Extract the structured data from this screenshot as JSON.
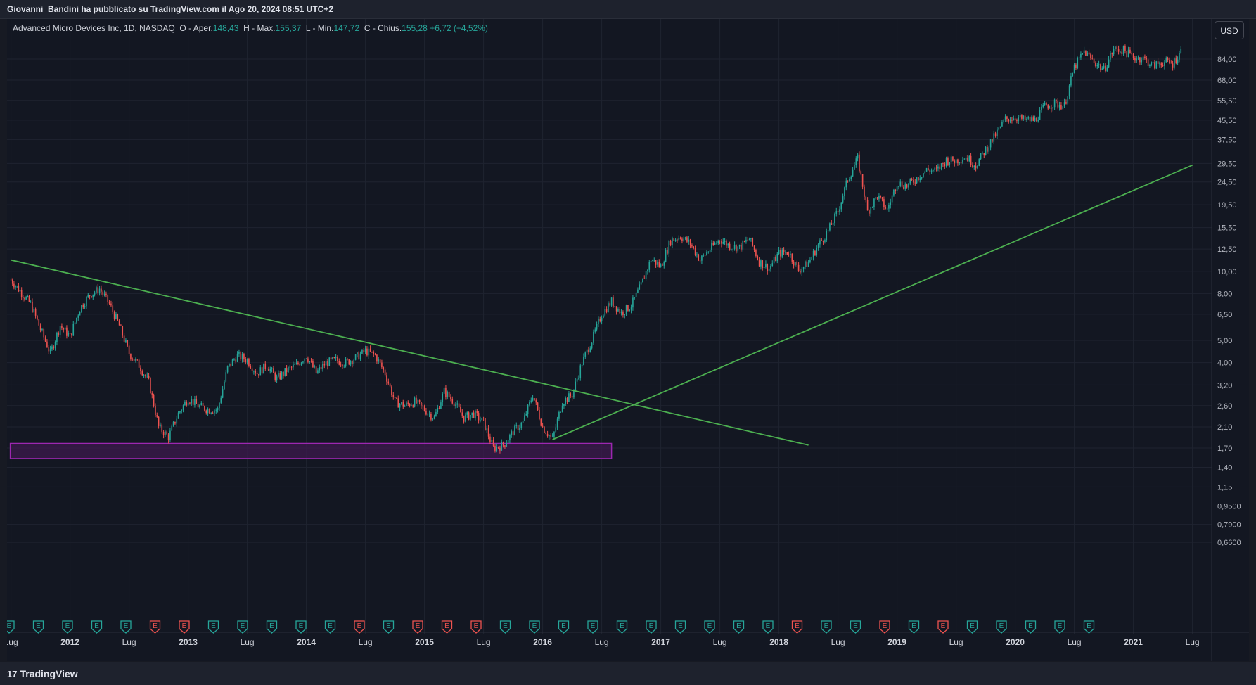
{
  "header": {
    "publisher_text": "Giovanni_Bandini ha pubblicato su TradingView.com il Ago 20, 2024 08:51 UTC+2"
  },
  "legend": {
    "symbol": "Advanced Micro Devices Inc, 1D, NASDAQ",
    "open_label": "O - Aper.",
    "open": "148,43",
    "high_label": "H - Max.",
    "high": "155,37",
    "low_label": "L - Min.",
    "low": "147,72",
    "close_label": "C - Chius.",
    "close": "155,28",
    "change": "+6,72 (+4,52%)"
  },
  "currency_button": "USD",
  "footer": {
    "brand": "TradingView",
    "logo_glyph": "17"
  },
  "colors": {
    "up": "#26a69a",
    "down": "#ef5350",
    "trendline": "#4caf50",
    "zone_border": "#9c27b0",
    "zone_fill": "#3e1a4d",
    "background": "#131722",
    "grid": "#1f2330"
  },
  "chart_data": {
    "type": "candlestick",
    "y_scale": "log",
    "ylim": [
      0.6,
      120
    ],
    "x_ticks": [
      "Lug",
      "2012",
      "Lug",
      "2013",
      "Lug",
      "2014",
      "Lug",
      "2015",
      "Lug",
      "2016",
      "Lug",
      "2017",
      "Lug",
      "2018",
      "Lug",
      "2019",
      "Lug",
      "2020",
      "Lug",
      "2021",
      "Lug"
    ],
    "y_ticks": [
      "84,00",
      "68,00",
      "55,50",
      "45,50",
      "37,50",
      "29,50",
      "24,50",
      "19,50",
      "15,50",
      "12,50",
      "10,00",
      "8,00",
      "6,50",
      "5,00",
      "4,00",
      "3,20",
      "2,60",
      "2,10",
      "1,70",
      "1,40",
      "1,15",
      "0,9500",
      "0,7900",
      "0,6600"
    ],
    "y_tick_values": [
      84,
      68,
      55.5,
      45.5,
      37.5,
      29.5,
      24.5,
      19.5,
      15.5,
      12.5,
      10,
      8,
      6.5,
      5,
      4,
      3.2,
      2.6,
      2.1,
      1.7,
      1.4,
      1.15,
      0.95,
      0.79,
      0.66
    ],
    "price_path": [
      [
        "2011-07",
        9.2
      ],
      [
        "2011-09",
        7.2
      ],
      [
        "2011-10",
        5.6
      ],
      [
        "2011-11",
        4.4
      ],
      [
        "2011-12",
        5.8
      ],
      [
        "2012-01",
        5.2
      ],
      [
        "2012-02",
        6.9
      ],
      [
        "2012-03",
        7.9
      ],
      [
        "2012-04",
        8.4
      ],
      [
        "2012-05",
        7.2
      ],
      [
        "2012-06",
        5.8
      ],
      [
        "2012-07",
        4.4
      ],
      [
        "2012-08",
        3.9
      ],
      [
        "2012-09",
        3.3
      ],
      [
        "2012-10",
        2.1
      ],
      [
        "2012-11",
        1.9
      ],
      [
        "2012-12",
        2.4
      ],
      [
        "2013-01",
        2.8
      ],
      [
        "2013-02",
        2.6
      ],
      [
        "2013-03",
        2.5
      ],
      [
        "2013-04",
        2.5
      ],
      [
        "2013-05",
        3.8
      ],
      [
        "2013-06",
        4.3
      ],
      [
        "2013-07",
        4.1
      ],
      [
        "2013-08",
        3.6
      ],
      [
        "2013-09",
        3.9
      ],
      [
        "2013-10",
        3.4
      ],
      [
        "2013-11",
        3.7
      ],
      [
        "2013-12",
        3.9
      ],
      [
        "2014-01",
        4.3
      ],
      [
        "2014-02",
        3.6
      ],
      [
        "2014-03",
        4.0
      ],
      [
        "2014-04",
        4.1
      ],
      [
        "2014-05",
        4.0
      ],
      [
        "2014-06",
        4.2
      ],
      [
        "2014-07",
        4.5
      ],
      [
        "2014-08",
        4.3
      ],
      [
        "2014-09",
        3.6
      ],
      [
        "2014-10",
        2.7
      ],
      [
        "2014-11",
        2.6
      ],
      [
        "2014-12",
        2.7
      ],
      [
        "2015-01",
        2.5
      ],
      [
        "2015-02",
        2.3
      ],
      [
        "2015-03",
        3.0
      ],
      [
        "2015-04",
        2.7
      ],
      [
        "2015-05",
        2.3
      ],
      [
        "2015-06",
        2.4
      ],
      [
        "2015-07",
        2.2
      ],
      [
        "2015-08",
        1.7
      ],
      [
        "2015-09",
        1.75
      ],
      [
        "2015-10",
        2.0
      ],
      [
        "2015-11",
        2.2
      ],
      [
        "2015-12",
        2.9
      ],
      [
        "2016-01",
        2.1
      ],
      [
        "2016-02",
        1.85
      ],
      [
        "2016-03",
        2.7
      ],
      [
        "2016-04",
        2.9
      ],
      [
        "2016-05",
        4.0
      ],
      [
        "2016-06",
        5.0
      ],
      [
        "2016-07",
        6.5
      ],
      [
        "2016-08",
        7.4
      ],
      [
        "2016-09",
        6.6
      ],
      [
        "2016-10",
        7.1
      ],
      [
        "2016-11",
        8.7
      ],
      [
        "2016-12",
        11.3
      ],
      [
        "2017-01",
        10.5
      ],
      [
        "2017-02",
        13.6
      ],
      [
        "2017-03",
        14.2
      ],
      [
        "2017-04",
        13.2
      ],
      [
        "2017-05",
        11.2
      ],
      [
        "2017-06",
        12.5
      ],
      [
        "2017-07",
        13.8
      ],
      [
        "2017-08",
        12.9
      ],
      [
        "2017-09",
        12.7
      ],
      [
        "2017-10",
        13.9
      ],
      [
        "2017-11",
        11.0
      ],
      [
        "2017-12",
        10.3
      ],
      [
        "2018-01",
        12.0
      ],
      [
        "2018-02",
        12.1
      ],
      [
        "2018-03",
        10.1
      ],
      [
        "2018-04",
        10.9
      ],
      [
        "2018-05",
        13.0
      ],
      [
        "2018-06",
        15.0
      ],
      [
        "2018-07",
        18.3
      ],
      [
        "2018-08",
        25.2
      ],
      [
        "2018-09",
        30.9
      ],
      [
        "2018-10",
        18.2
      ],
      [
        "2018-11",
        21.3
      ],
      [
        "2018-12",
        18.5
      ],
      [
        "2019-01",
        24.4
      ],
      [
        "2019-02",
        23.5
      ],
      [
        "2019-03",
        25.5
      ],
      [
        "2019-04",
        27.6
      ],
      [
        "2019-05",
        27.4
      ],
      [
        "2019-06",
        30.4
      ],
      [
        "2019-07",
        30.4
      ],
      [
        "2019-08",
        31.5
      ],
      [
        "2019-09",
        29.0
      ],
      [
        "2019-10",
        33.9
      ],
      [
        "2019-11",
        39.2
      ],
      [
        "2019-12",
        45.9
      ],
      [
        "2020-01",
        47.0
      ],
      [
        "2020-02",
        45.5
      ],
      [
        "2020-03",
        45.5
      ],
      [
        "2020-04",
        52.4
      ],
      [
        "2020-05",
        53.8
      ],
      [
        "2020-06",
        52.6
      ],
      [
        "2020-07",
        77.4
      ],
      [
        "2020-08",
        90.8
      ],
      [
        "2020-09",
        82.0
      ],
      [
        "2020-10",
        75.3
      ],
      [
        "2020-11",
        92.7
      ],
      [
        "2020-12",
        91.7
      ],
      [
        "2021-01",
        85.6
      ],
      [
        "2021-02",
        84.5
      ],
      [
        "2021-03",
        78.5
      ],
      [
        "2021-04",
        81.6
      ],
      [
        "2021-05",
        80.1
      ],
      [
        "2021-06",
        93.6
      ]
    ],
    "trendlines": [
      {
        "from": [
          "2011-07",
          11.2
        ],
        "to": [
          "2018-04",
          1.75
        ]
      },
      {
        "from": [
          "2016-02",
          1.85
        ],
        "to": [
          "2021-07",
          29.0
        ]
      }
    ],
    "support_zone": {
      "from": "2011-07",
      "to": "2016-08",
      "low": 1.53,
      "high": 1.78
    },
    "earnings_markers": [
      "green",
      "green",
      "green",
      "green",
      "green",
      "red",
      "red",
      "green",
      "green",
      "green",
      "green",
      "green",
      "red",
      "green",
      "red",
      "red",
      "red",
      "green",
      "green",
      "green",
      "green",
      "green",
      "green",
      "green",
      "green",
      "green",
      "green",
      "red",
      "green",
      "green",
      "red",
      "green",
      "red",
      "green",
      "green",
      "green",
      "green",
      "green"
    ],
    "earnings_label": "E"
  }
}
